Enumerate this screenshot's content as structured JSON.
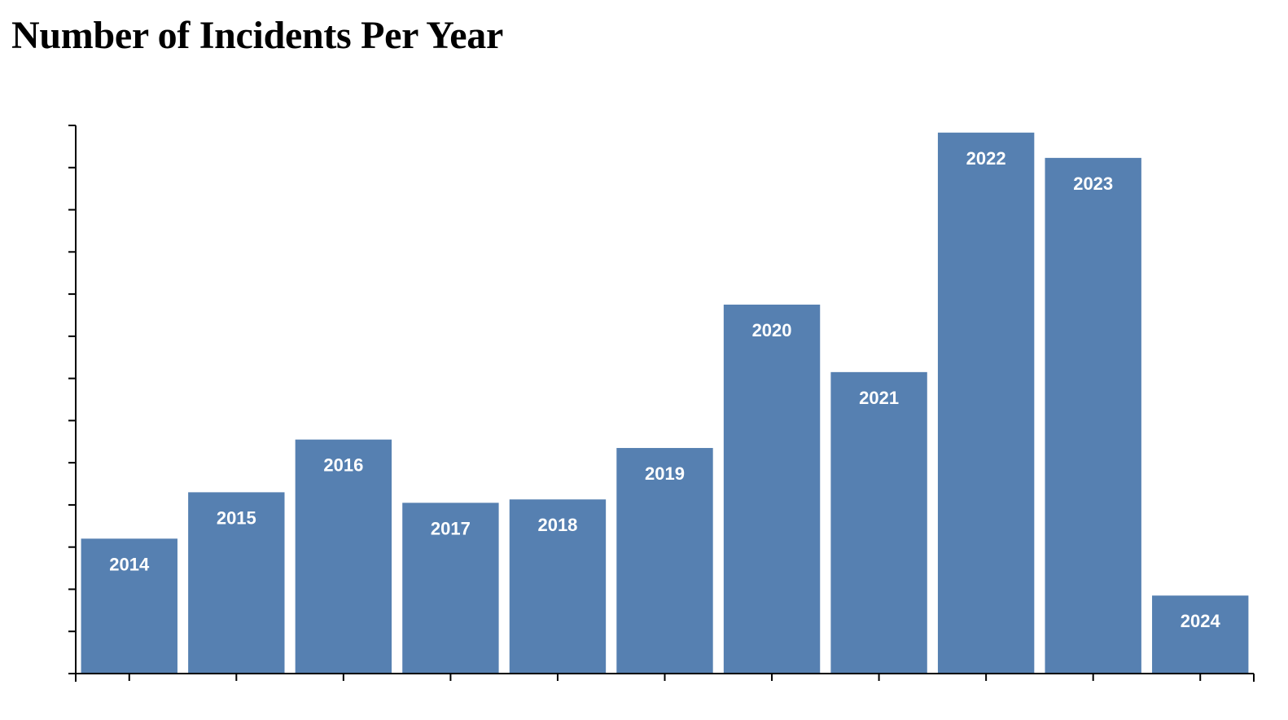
{
  "chart_data": {
    "type": "bar",
    "title": "Number of Incidents Per Year",
    "categories": [
      "2014",
      "2015",
      "2016",
      "2017",
      "2018",
      "2019",
      "2020",
      "2021",
      "2022",
      "2023",
      "2024"
    ],
    "values": [
      32,
      43,
      55.5,
      40.5,
      41.3,
      53.5,
      87.5,
      71.5,
      128.3,
      122.3,
      18.5
    ],
    "ylim": [
      0,
      130
    ],
    "ytick_step": 10,
    "xlabel": "",
    "ylabel": "",
    "grid": false,
    "bar_color": "#5680b1",
    "label_color": "#ffffff",
    "axis_color": "#000000"
  }
}
